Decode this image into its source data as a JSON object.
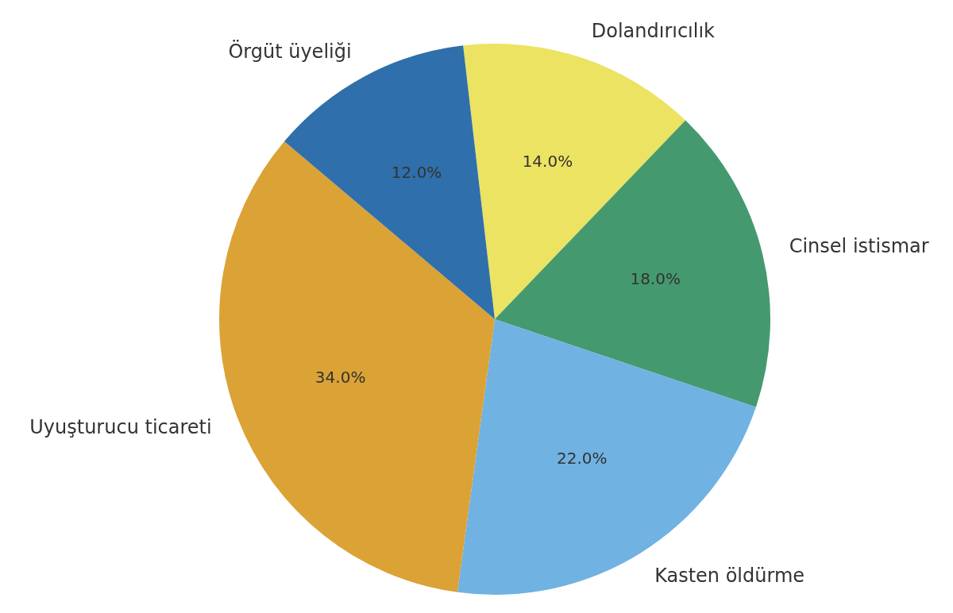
{
  "chart_data": {
    "type": "pie",
    "categories": [
      "Dolandırıcılık",
      "Cinsel istismar",
      "Kasten öldürme",
      "Uyuşturucu ticareti",
      "Örgüt üyeliği"
    ],
    "values": [
      14,
      18,
      22,
      34,
      12
    ],
    "colors": [
      "#ebe361",
      "#45996f",
      "#70b2e2",
      "#dba236",
      "#2f6fab"
    ],
    "value_labels": [
      "14.0%",
      "18.0%",
      "22.0%",
      "34.0%",
      "12.0%"
    ]
  }
}
